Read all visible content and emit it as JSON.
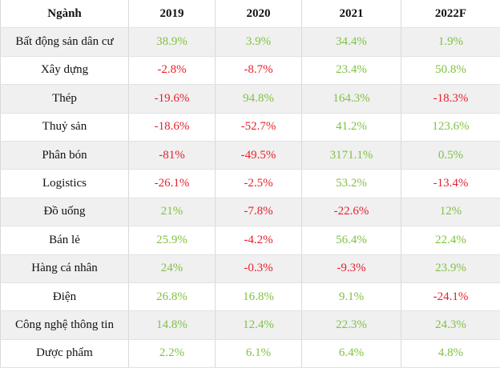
{
  "table": {
    "headers": [
      "Ngành",
      "2019",
      "2020",
      "2021",
      "2022F"
    ],
    "rows": [
      {
        "name": "Bất động sản dân cư",
        "values": [
          "38.9%",
          "3.9%",
          "34.4%",
          "1.9%"
        ]
      },
      {
        "name": "Xây dựng",
        "values": [
          "-2.8%",
          "-8.7%",
          "23.4%",
          "50.8%"
        ]
      },
      {
        "name": "Thép",
        "values": [
          "-19.6%",
          "94.8%",
          "164.3%",
          "-18.3%"
        ]
      },
      {
        "name": "Thuỷ sản",
        "values": [
          "-18.6%",
          "-52.7%",
          "41.2%",
          "123.6%"
        ]
      },
      {
        "name": "Phân bón",
        "values": [
          "-81%",
          "-49.5%",
          "3171.1%",
          "0.5%"
        ]
      },
      {
        "name": "Logistics",
        "values": [
          "-26.1%",
          "-2.5%",
          "53.2%",
          "-13.4%"
        ]
      },
      {
        "name": "Đồ uống",
        "values": [
          "21%",
          "-7.8%",
          "-22.6%",
          "12%"
        ]
      },
      {
        "name": "Bán lẻ",
        "values": [
          "25.9%",
          "-4.2%",
          "56.4%",
          "22.4%"
        ]
      },
      {
        "name": "Hàng cá nhân",
        "values": [
          "24%",
          "-0.3%",
          "-9.3%",
          "23.9%"
        ]
      },
      {
        "name": "Điện",
        "values": [
          "26.8%",
          "16.8%",
          "9.1%",
          "-24.1%"
        ]
      },
      {
        "name": "Công nghệ thông tin",
        "values": [
          "14.8%",
          "12.4%",
          "22.3%",
          "24.3%"
        ]
      },
      {
        "name": "Dược phẩm",
        "values": [
          "2.2%",
          "6.1%",
          "6.4%",
          "4.8%"
        ]
      }
    ]
  },
  "colors": {
    "positive": "#7fc241",
    "negative": "#e8202a",
    "row_stripe": "#f0f0f0"
  }
}
